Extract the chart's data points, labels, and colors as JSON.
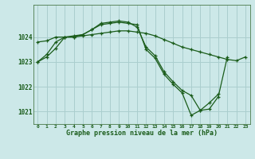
{
  "background_color": "#cce8e8",
  "grid_color": "#aacece",
  "line_color": "#1a5c1a",
  "x_ticks": [
    0,
    1,
    2,
    3,
    4,
    5,
    6,
    7,
    8,
    9,
    10,
    11,
    12,
    13,
    14,
    15,
    16,
    17,
    18,
    19,
    20,
    21,
    22,
    23
  ],
  "ylim": [
    1020.5,
    1025.3
  ],
  "yticks": [
    1021,
    1022,
    1023,
    1024
  ],
  "xlabel": "Graphe pression niveau de la mer (hPa)",
  "line1_x": [
    0,
    1,
    2,
    3,
    4,
    5,
    6,
    7,
    8,
    9,
    10,
    11,
    12,
    13,
    14,
    15,
    16,
    17,
    18,
    19,
    20,
    21
  ],
  "line1_y": [
    1023.0,
    1023.3,
    1023.8,
    1024.0,
    1024.05,
    1024.1,
    1024.3,
    1024.55,
    1024.6,
    1024.65,
    1024.6,
    1024.4,
    1023.6,
    1023.25,
    1022.6,
    1022.2,
    1021.85,
    1021.65,
    1021.05,
    1021.1,
    1021.6,
    1023.2
  ],
  "line2_x": [
    0,
    1,
    2,
    3,
    4,
    5,
    6,
    7,
    8,
    9,
    10,
    11,
    12,
    13,
    14,
    15,
    16,
    17,
    18,
    19,
    20,
    21,
    22,
    23
  ],
  "line2_y": [
    1023.8,
    1023.85,
    1024.0,
    1024.0,
    1024.0,
    1024.05,
    1024.1,
    1024.15,
    1024.2,
    1024.25,
    1024.25,
    1024.2,
    1024.15,
    1024.05,
    1023.9,
    1023.75,
    1023.6,
    1023.5,
    1023.4,
    1023.3,
    1023.2,
    1023.1,
    1023.05,
    1023.2
  ],
  "line3_x": [
    0,
    1,
    2,
    3,
    4,
    5,
    6,
    7,
    8,
    9,
    10,
    11,
    12,
    13,
    14,
    15,
    16,
    17,
    18,
    19,
    20
  ],
  "line3_y": [
    1023.0,
    1023.2,
    1023.55,
    1024.0,
    1024.0,
    1024.1,
    1024.3,
    1024.5,
    1024.55,
    1024.6,
    1024.55,
    1024.5,
    1023.5,
    1023.15,
    1022.5,
    1022.1,
    1021.75,
    1020.85,
    1021.05,
    1021.35,
    1021.7
  ]
}
